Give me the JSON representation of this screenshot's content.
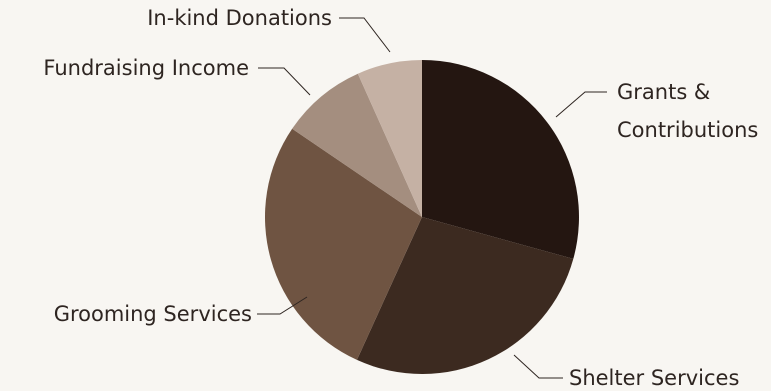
{
  "chart_data": {
    "type": "pie",
    "title": "",
    "start_angle": "12 o'clock",
    "direction": "clockwise",
    "slices": [
      {
        "label": [
          "Grants &",
          "Contributions"
        ],
        "value": 29.3,
        "color": "#241611"
      },
      {
        "label": [
          "Shelter Services"
        ],
        "value": 27.5,
        "color": "#3c2a20"
      },
      {
        "label": [
          "Grooming Services"
        ],
        "value": 27.7,
        "color": "#6f5442"
      },
      {
        "label": [
          "Fundraising Income"
        ],
        "value": 8.8,
        "color": "#a48e7f"
      },
      {
        "label": [
          "In-kind Donations"
        ],
        "value": 6.7,
        "color": "#c5b1a4"
      }
    ]
  }
}
